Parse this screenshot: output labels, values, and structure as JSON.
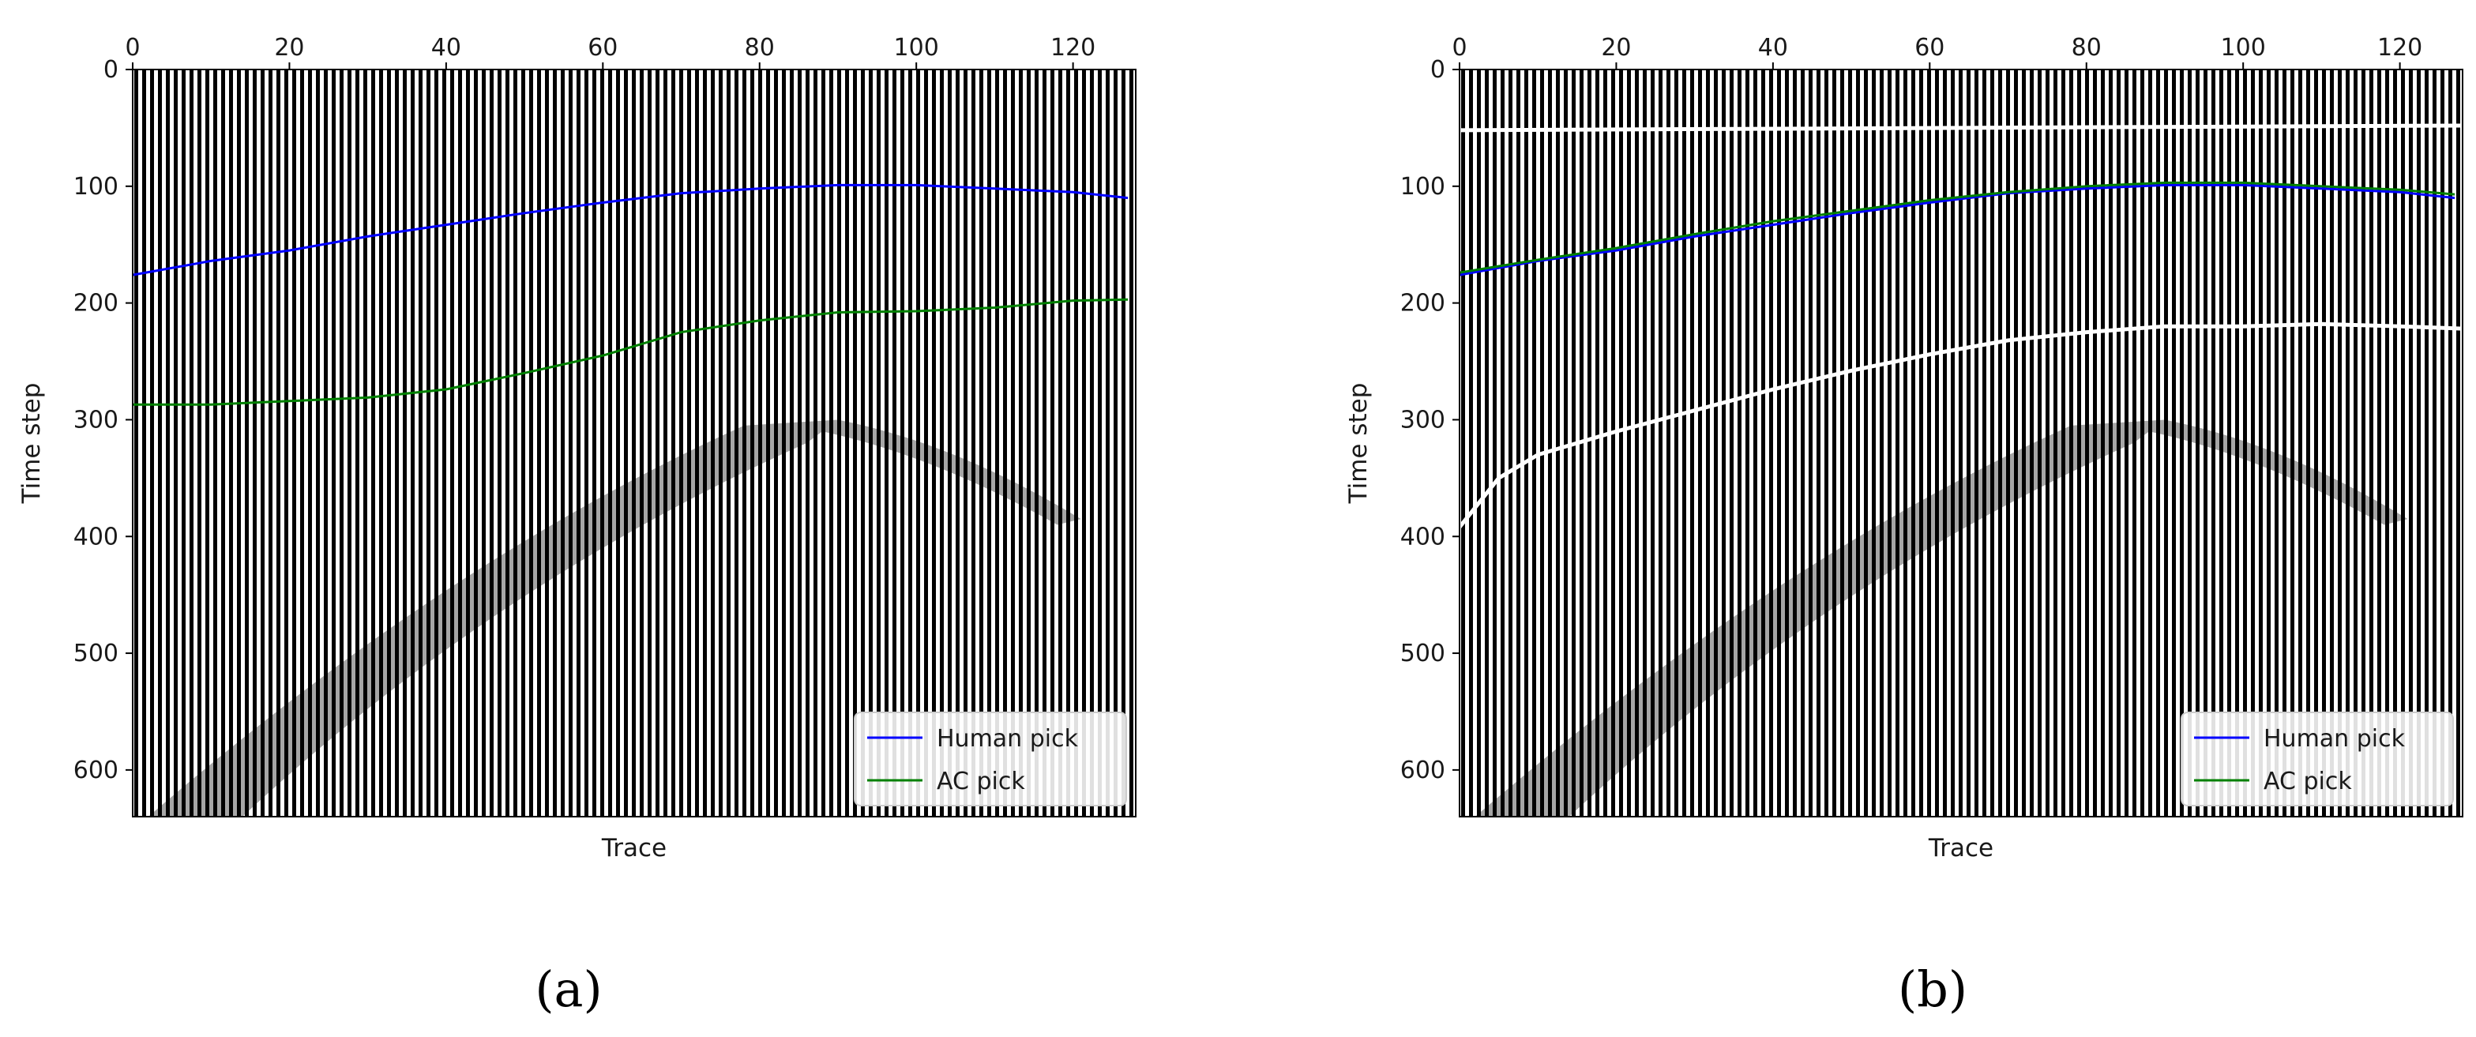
{
  "chart_data": [
    {
      "type": "line",
      "panel_label": "(a)",
      "xlabel": "Trace",
      "ylabel": "Time step",
      "xlim": [
        0,
        128
      ],
      "ylim": [
        640,
        0
      ],
      "xticks": [
        0,
        20,
        40,
        60,
        80,
        100,
        120
      ],
      "yticks": [
        0,
        100,
        200,
        300,
        400,
        500,
        600
      ],
      "x_axis_position": "top",
      "background": "seismic wiggle traces (black/white)",
      "legend": {
        "position": "bottom-right",
        "entries": [
          "Human pick",
          "AC pick"
        ]
      },
      "white_lines": [],
      "series": [
        {
          "name": "Human pick",
          "color": "#0000ff",
          "x": [
            0,
            10,
            20,
            30,
            40,
            50,
            60,
            70,
            80,
            90,
            100,
            110,
            120,
            127
          ],
          "y": [
            176,
            164,
            155,
            143,
            133,
            123,
            114,
            106,
            102,
            99,
            99,
            102,
            105,
            110
          ]
        },
        {
          "name": "AC pick",
          "color": "#008000",
          "x": [
            0,
            10,
            20,
            30,
            40,
            50,
            60,
            70,
            80,
            90,
            100,
            110,
            120,
            127
          ],
          "y": [
            287,
            287,
            284,
            281,
            274,
            260,
            245,
            225,
            215,
            208,
            207,
            204,
            198,
            197
          ]
        }
      ]
    },
    {
      "type": "line",
      "panel_label": "(b)",
      "xlabel": "Trace",
      "ylabel": "Time step",
      "xlim": [
        0,
        128
      ],
      "ylim": [
        640,
        0
      ],
      "xticks": [
        0,
        20,
        40,
        60,
        80,
        100,
        120
      ],
      "yticks": [
        0,
        100,
        200,
        300,
        400,
        500,
        600
      ],
      "x_axis_position": "top",
      "background": "seismic wiggle traces (black/white)",
      "legend": {
        "position": "bottom-right",
        "entries": [
          "Human pick",
          "AC pick"
        ]
      },
      "white_lines": [
        {
          "x": [
            0,
            128
          ],
          "y": [
            52,
            48
          ]
        },
        {
          "x": [
            0,
            5,
            10,
            20,
            30,
            40,
            50,
            60,
            70,
            80,
            90,
            100,
            110,
            120,
            128
          ],
          "y": [
            392,
            350,
            330,
            310,
            292,
            274,
            258,
            244,
            232,
            225,
            220,
            220,
            218,
            220,
            222
          ]
        }
      ],
      "series": [
        {
          "name": "Human pick",
          "color": "#0000ff",
          "x": [
            0,
            10,
            20,
            30,
            40,
            50,
            60,
            70,
            80,
            90,
            100,
            110,
            120,
            127
          ],
          "y": [
            176,
            164,
            155,
            143,
            133,
            123,
            114,
            106,
            102,
            99,
            99,
            102,
            105,
            110
          ]
        },
        {
          "name": "AC pick",
          "color": "#008000",
          "x": [
            0,
            10,
            20,
            30,
            40,
            50,
            60,
            70,
            80,
            90,
            100,
            110,
            120,
            127
          ],
          "y": [
            174,
            163,
            153,
            141,
            130,
            121,
            112,
            105,
            100,
            97,
            97,
            100,
            103,
            107
          ]
        }
      ]
    }
  ]
}
